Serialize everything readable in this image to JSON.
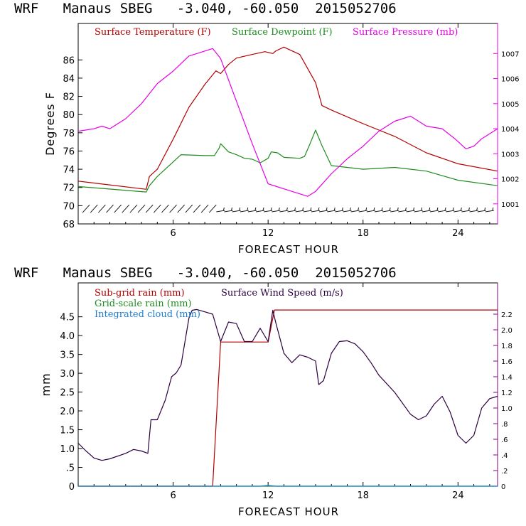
{
  "colors": {
    "temperature": "#b20000",
    "dewpoint": "#1e8c1e",
    "pressure": "#e600e6",
    "subgrid_rain": "#b20000",
    "gridscale_rain": "#1e8c1e",
    "integrated_cloud": "#1e7fd0",
    "wind_speed": "#2a0040",
    "barbs": "#1a1a1a",
    "axes": "#000000",
    "right_axis_top": "#e600e6",
    "right_axis_bottom": "#800080"
  },
  "chart_data": [
    {
      "type": "line",
      "title": "WRF   Manaus SBEG   -3.040, -60.050  2015052706",
      "xlabel": "FORECAST HOUR",
      "ylabel": "Degrees F",
      "xlim": [
        0,
        26.5
      ],
      "ylim": [
        68,
        90
      ],
      "xticks": [
        "6",
        "12",
        "18",
        "24"
      ],
      "yticks": [
        "68",
        "70",
        "72",
        "74",
        "76",
        "78",
        "80",
        "82",
        "84",
        "86"
      ],
      "y2lim": [
        1000.2,
        1008.2
      ],
      "y2ticks": [
        "1001",
        "1002",
        "1003",
        "1004",
        "1005",
        "1006",
        "1007"
      ],
      "legend": [
        "Surface Temperature (F)",
        "Surface Dewpoint (F)",
        "Surface Pressure (mb)"
      ],
      "legend_position": "top-left",
      "series": [
        {
          "name": "Surface Temperature (F)",
          "axis": "left",
          "x": [
            0,
            4.3,
            4.5,
            5,
            6,
            7,
            8,
            8.7,
            9,
            9.5,
            10,
            11,
            11.8,
            12.3,
            12.5,
            13,
            14,
            15,
            15.4,
            16,
            18,
            20,
            22,
            24,
            26.5
          ],
          "y": [
            72.7,
            71.8,
            73.2,
            74,
            77.3,
            80.8,
            83.3,
            84.8,
            84.5,
            85.5,
            86.2,
            86.6,
            86.9,
            86.7,
            87,
            87.4,
            86.6,
            83.5,
            81,
            80.5,
            79,
            77.6,
            75.8,
            74.6,
            73.8
          ]
        },
        {
          "name": "Surface Dewpoint (F)",
          "axis": "left",
          "x": [
            0,
            4.3,
            4.5,
            5,
            6,
            6.5,
            8,
            8.6,
            8.9,
            9,
            9.5,
            10,
            10.5,
            11,
            11.5,
            12,
            12.2,
            12.6,
            13,
            14,
            14.3,
            14.6,
            15,
            15.4,
            16,
            17,
            18,
            20,
            22,
            24,
            26.5
          ],
          "y": [
            72.1,
            71.5,
            72.2,
            73.2,
            74.8,
            75.6,
            75.5,
            75.5,
            76.3,
            76.8,
            75.9,
            75.6,
            75.2,
            75.1,
            74.7,
            75.2,
            75.9,
            75.8,
            75.3,
            75.2,
            75.4,
            76.6,
            78.3,
            76.6,
            74.4,
            74.2,
            74,
            74.2,
            73.8,
            72.8,
            72.2
          ]
        },
        {
          "name": "Surface Pressure (mb)",
          "axis": "right",
          "x": [
            0,
            1,
            1.5,
            2,
            3,
            4,
            5,
            6,
            7,
            7.5,
            8,
            8.5,
            9,
            10,
            11,
            12,
            13,
            14,
            14.5,
            15,
            16,
            17,
            18,
            19,
            20,
            20.5,
            21,
            22,
            23,
            23.8,
            24.5,
            25,
            25.5,
            26.5
          ],
          "y": [
            1003.9,
            1004,
            1004.1,
            1004,
            1004.4,
            1005,
            1005.8,
            1006.3,
            1006.9,
            1007,
            1007.1,
            1007.2,
            1006.8,
            1005.1,
            1003.4,
            1001.8,
            1001.6,
            1001.4,
            1001.3,
            1001.5,
            1002.2,
            1002.8,
            1003.3,
            1003.9,
            1004.3,
            1004.4,
            1004.5,
            1004.1,
            1004,
            1003.6,
            1003.2,
            1003.3,
            1003.6,
            1004
          ]
        }
      ]
    },
    {
      "type": "line",
      "title": "WRF   Manaus SBEG   -3.040, -60.050  2015052706",
      "xlabel": "FORECAST HOUR",
      "ylabel": "mm",
      "xlim": [
        0,
        26.5
      ],
      "ylim": [
        0,
        5.4
      ],
      "xticks": [
        "6",
        "12",
        "18",
        "24"
      ],
      "yticks": [
        "0",
        ".5",
        "1.0",
        "1.5",
        "2.0",
        "2.5",
        "3.0",
        "3.5",
        "4.0",
        "4.5"
      ],
      "y2lim": [
        0,
        2.6
      ],
      "y2ticks": [
        "0",
        ".2",
        ".4",
        ".6",
        ".8",
        "1.0",
        "1.2",
        "1.4",
        "1.6",
        "1.8",
        "2.0",
        "2.2"
      ],
      "legend": [
        "Sub-grid rain (mm)",
        "Grid-scale rain (mm)",
        "Integrated cloud (mm)",
        "Surface Wind Speed (m/s)"
      ],
      "legend_position": "top-left",
      "series": [
        {
          "name": "Sub-grid rain (mm)",
          "axis": "left",
          "x": [
            0,
            8.5,
            9,
            11.8,
            12,
            12.4,
            26.5
          ],
          "y": [
            0,
            0,
            3.83,
            3.83,
            3.83,
            4.68,
            4.68
          ]
        },
        {
          "name": "Grid-scale rain (mm)",
          "axis": "left",
          "x": [
            0,
            26.5
          ],
          "y": [
            0,
            0
          ]
        },
        {
          "name": "Integrated cloud (mm)",
          "axis": "left",
          "x": [
            0,
            11.5,
            12,
            12.5,
            26.5
          ],
          "y": [
            0,
            0,
            0.02,
            0,
            0
          ]
        },
        {
          "name": "Surface Wind Speed (m/s)",
          "axis": "right",
          "x": [
            0,
            0.5,
            1,
            1.5,
            2,
            3,
            3.5,
            4,
            4.4,
            4.6,
            5,
            5.5,
            5.9,
            6.2,
            6.5,
            7,
            7.2,
            7.5,
            8,
            8.5,
            9,
            9.5,
            10,
            10.5,
            11,
            11.5,
            12,
            12.3,
            12.5,
            13,
            13.5,
            14,
            14.5,
            15,
            15.2,
            15.5,
            16,
            16.5,
            17,
            17.5,
            18,
            18.5,
            19,
            20,
            21,
            21.5,
            22,
            22.5,
            23,
            23.5,
            24,
            24.5,
            25,
            25.5,
            26,
            26.5
          ],
          "y": [
            0.55,
            0.45,
            0.36,
            0.33,
            0.35,
            0.42,
            0.47,
            0.45,
            0.42,
            0.85,
            0.85,
            1.1,
            1.4,
            1.45,
            1.55,
            2.15,
            2.25,
            2.26,
            2.23,
            2.2,
            1.85,
            2.1,
            2.08,
            1.85,
            1.85,
            2.02,
            1.85,
            2.25,
            2.08,
            1.7,
            1.58,
            1.68,
            1.65,
            1.6,
            1.3,
            1.35,
            1.7,
            1.85,
            1.86,
            1.82,
            1.72,
            1.58,
            1.42,
            1.2,
            0.92,
            0.85,
            0.9,
            1.05,
            1.15,
            0.95,
            0.65,
            0.55,
            0.65,
            1,
            1.12,
            1.15
          ]
        }
      ]
    }
  ]
}
